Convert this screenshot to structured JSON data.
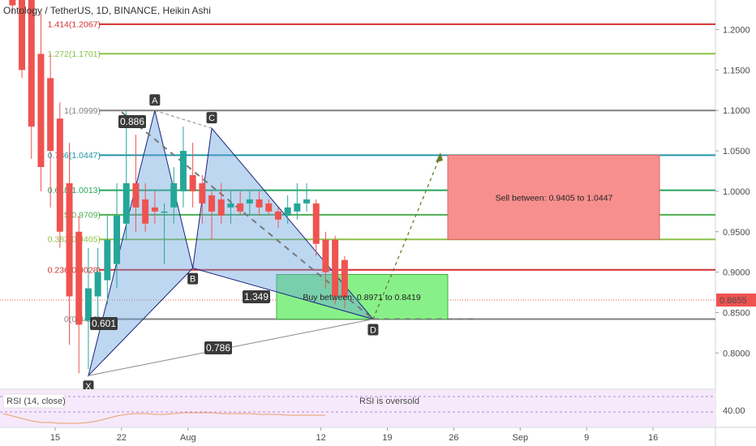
{
  "header": {
    "title": "Ontology / TetherUS, 1D, BINANCE, Heikin Ashi"
  },
  "chart_data": {
    "type": "candlestick",
    "title": "Ontology / TetherUS, 1D, BINANCE, Heikin Ashi",
    "y_axis": {
      "ylim": [
        0.745,
        1.245
      ],
      "ticks": [
        "1.2000",
        "1.1500",
        "1.1000",
        "1.0500",
        "1.0000",
        "0.9500",
        "0.9000",
        "0.8500",
        "0.8000"
      ]
    },
    "x_axis": {
      "tick_labels": [
        "15",
        "22",
        "Aug",
        "12",
        "19",
        "26",
        "Sep",
        "9",
        "16"
      ],
      "tick_days": [
        0,
        7,
        14,
        28,
        35,
        42,
        49,
        56,
        63
      ]
    },
    "last_price": {
      "label": "0.8655",
      "value": 0.8655
    },
    "candles": [
      {
        "d": -5.5,
        "o": 1.39,
        "h": 1.42,
        "l": 1.25,
        "c": 1.27
      },
      {
        "d": -4.5,
        "o": 1.34,
        "h": 1.38,
        "l": 1.22,
        "c": 1.23
      },
      {
        "d": -3.5,
        "o": 1.3,
        "h": 1.34,
        "l": 1.14,
        "c": 1.15
      },
      {
        "d": -2.5,
        "o": 1.25,
        "h": 1.3,
        "l": 1.04,
        "c": 1.08
      },
      {
        "d": -1.5,
        "o": 1.17,
        "h": 1.22,
        "l": 1.0,
        "c": 1.03
      },
      {
        "d": -0.5,
        "o": 1.14,
        "h": 1.17,
        "l": 0.98,
        "c": 1.05
      },
      {
        "d": 0.5,
        "o": 1.09,
        "h": 1.11,
        "l": 0.93,
        "c": 0.95
      },
      {
        "d": 1.5,
        "o": 1.01,
        "h": 1.06,
        "l": 0.81,
        "c": 0.87
      },
      {
        "d": 2.5,
        "o": 0.95,
        "h": 0.97,
        "l": 0.775,
        "c": 0.835
      },
      {
        "d": 3.5,
        "o": 0.84,
        "h": 0.93,
        "l": 0.78,
        "c": 0.88
      },
      {
        "d": 4.5,
        "o": 0.87,
        "h": 0.93,
        "l": 0.84,
        "c": 0.9
      },
      {
        "d": 5.5,
        "o": 0.89,
        "h": 0.97,
        "l": 0.86,
        "c": 0.94
      },
      {
        "d": 6.5,
        "o": 0.91,
        "h": 1.01,
        "l": 0.88,
        "c": 0.97
      },
      {
        "d": 7.5,
        "o": 0.96,
        "h": 1.1,
        "l": 0.94,
        "c": 1.01
      },
      {
        "d": 8.5,
        "o": 1.01,
        "h": 1.07,
        "l": 0.95,
        "c": 0.98
      },
      {
        "d": 9.5,
        "o": 0.99,
        "h": 1.01,
        "l": 0.95,
        "c": 0.96
      },
      {
        "d": 10.5,
        "o": 0.98,
        "h": 1.0,
        "l": 0.96,
        "c": 0.975
      },
      {
        "d": 11.5,
        "o": 0.975,
        "h": 0.985,
        "l": 0.91,
        "c": 0.975
      },
      {
        "d": 12.5,
        "o": 0.98,
        "h": 1.03,
        "l": 0.96,
        "c": 1.01
      },
      {
        "d": 13.5,
        "o": 1.0,
        "h": 1.08,
        "l": 0.98,
        "c": 1.05
      },
      {
        "d": 14.5,
        "o": 1.02,
        "h": 1.06,
        "l": 0.98,
        "c": 1.0
      },
      {
        "d": 15.5,
        "o": 1.01,
        "h": 1.02,
        "l": 0.96,
        "c": 0.985
      },
      {
        "d": 16.5,
        "o": 0.995,
        "h": 1.0,
        "l": 0.94,
        "c": 0.975
      },
      {
        "d": 17.5,
        "o": 0.99,
        "h": 1.01,
        "l": 0.96,
        "c": 0.97
      },
      {
        "d": 18.5,
        "o": 0.98,
        "h": 1.0,
        "l": 0.96,
        "c": 0.985
      },
      {
        "d": 19.5,
        "o": 0.985,
        "h": 1.0,
        "l": 0.97,
        "c": 0.975
      },
      {
        "d": 20.5,
        "o": 0.985,
        "h": 1.0,
        "l": 0.97,
        "c": 0.99
      },
      {
        "d": 21.5,
        "o": 0.99,
        "h": 1.0,
        "l": 0.97,
        "c": 0.98
      },
      {
        "d": 22.5,
        "o": 0.985,
        "h": 0.99,
        "l": 0.97,
        "c": 0.975
      },
      {
        "d": 23.5,
        "o": 0.975,
        "h": 0.98,
        "l": 0.955,
        "c": 0.965
      },
      {
        "d": 24.5,
        "o": 0.97,
        "h": 0.995,
        "l": 0.96,
        "c": 0.98
      },
      {
        "d": 25.5,
        "o": 0.975,
        "h": 1.01,
        "l": 0.965,
        "c": 0.985
      },
      {
        "d": 26.5,
        "o": 0.985,
        "h": 1.01,
        "l": 0.975,
        "c": 0.99
      },
      {
        "d": 27.5,
        "o": 0.985,
        "h": 0.99,
        "l": 0.92,
        "c": 0.935
      },
      {
        "d": 28.5,
        "o": 0.94,
        "h": 0.95,
        "l": 0.88,
        "c": 0.9
      },
      {
        "d": 29.5,
        "o": 0.94,
        "h": 0.945,
        "l": 0.86,
        "c": 0.87
      },
      {
        "d": 30.5,
        "o": 0.915,
        "h": 0.92,
        "l": 0.855,
        "c": 0.87
      }
    ],
    "fib_levels": [
      {
        "label": "1.414(1.2067)",
        "value": 1.2067,
        "color": "#d32f2f"
      },
      {
        "label": "1.272(1.1701)",
        "value": 1.1701,
        "color": "#8bc34a"
      },
      {
        "label": "1(1.0999)",
        "value": 1.0999,
        "color": "#808080"
      },
      {
        "label": "0.786(1.0447)",
        "value": 1.0447,
        "color": "#2196a8"
      },
      {
        "label": "0.618(1.0013)",
        "value": 1.0013,
        "color": "#26a65b"
      },
      {
        "label": "0.5(0.9709)",
        "value": 0.9709,
        "color": "#4caf50"
      },
      {
        "label": "0.382(0.9405)",
        "value": 0.9405,
        "color": "#8bc34a"
      },
      {
        "label": "0.236(0.9028)",
        "value": 0.9028,
        "color": "#d32f2f"
      },
      {
        "label": "0(0.8419)",
        "value": 0.8419,
        "color": "#808080"
      }
    ],
    "pattern_points": [
      {
        "label": "X",
        "d": 3.5,
        "v": 0.772
      },
      {
        "label": "A",
        "d": 10.5,
        "v": 1.0999
      },
      {
        "label": "B",
        "d": 14.5,
        "v": 0.905
      },
      {
        "label": "C",
        "d": 16.5,
        "v": 1.078
      },
      {
        "label": "D",
        "d": 33.5,
        "v": 0.8419
      }
    ],
    "ratios": [
      "0.886",
      "0.601",
      "1.349",
      "0.786"
    ],
    "zones": {
      "sell": {
        "text": "Sell between: 0.9405 to 1.0447",
        "from": 0.9405,
        "to": 1.0447
      },
      "buy": {
        "text": "Buy between: 0.8971 to 0.8419",
        "from": 0.8419,
        "to": 0.8971
      }
    },
    "rsi": {
      "label": "RSI (14, close)",
      "status": "RSI is oversold",
      "tick": "40.00"
    }
  }
}
